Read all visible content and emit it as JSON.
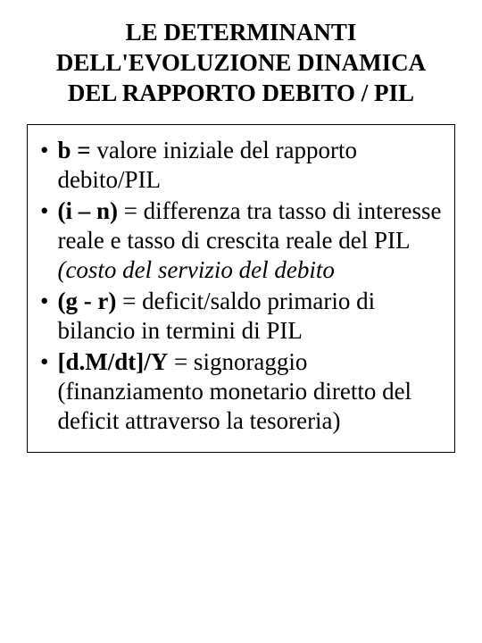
{
  "title": {
    "line1": "LE DETERMINANTI",
    "line2": "DELL'EVOLUZIONE DINAMICA",
    "line3": "DEL RAPPORTO DEBITO / PIL"
  },
  "bullets": [
    {
      "bold_prefix": "b = ",
      "text": "valore iniziale del rapporto debito/PIL"
    },
    {
      "bold_prefix": "(i – n)",
      "text": " = differenza tra tasso di interesse reale e tasso di crescita reale del PIL ",
      "italic_suffix": "(costo del servizio del debito"
    },
    {
      "bold_prefix": "(g - r)",
      "text": " = deficit/saldo primario di bilancio in termini di PIL"
    },
    {
      "bold_prefix": "[d.M/dt]/Y",
      "text": " = signoraggio (finanziamento monetario diretto del deficit attraverso la tesoreria)"
    }
  ],
  "styling": {
    "background_color": "#ffffff",
    "text_color": "#000000",
    "title_fontsize": 27,
    "body_fontsize": 27,
    "border_color": "#000000",
    "font_family": "Times New Roman"
  }
}
